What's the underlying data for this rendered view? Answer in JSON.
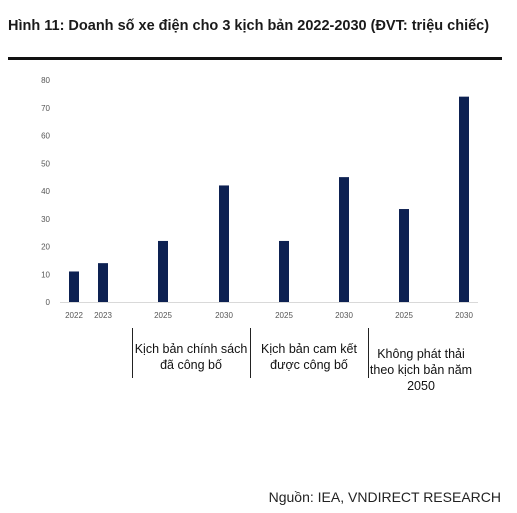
{
  "figure": {
    "title": "Hình 11: Doanh số xe điện cho 3 kịch bản 2022-2030 (ĐVT: triệu chiếc)",
    "source": "Nguồn: IEA, VNDIRECT RESEARCH"
  },
  "chart_data": {
    "type": "bar",
    "categories": [
      "2022",
      "2023",
      "2025",
      "2030",
      "2025",
      "2030",
      "2025",
      "2030"
    ],
    "values": [
      11,
      14,
      22,
      42,
      22,
      45,
      33.5,
      74
    ],
    "groups": [
      {
        "label": "Kịch bản chính sách đã công bố",
        "categories": [
          "2025",
          "2030"
        ]
      },
      {
        "label": "Kịch bản cam kết được công bố",
        "categories": [
          "2025",
          "2030"
        ]
      },
      {
        "label": "Không phát thải theo kịch bản năm 2050",
        "categories": [
          "2025",
          "2030"
        ]
      }
    ],
    "ylim": [
      0,
      80
    ],
    "yticks": [
      0,
      10,
      20,
      30,
      40,
      50,
      60,
      70,
      80
    ],
    "grid": false,
    "bar_color": "#0d2152",
    "axis_color": "#d9d9d9"
  }
}
